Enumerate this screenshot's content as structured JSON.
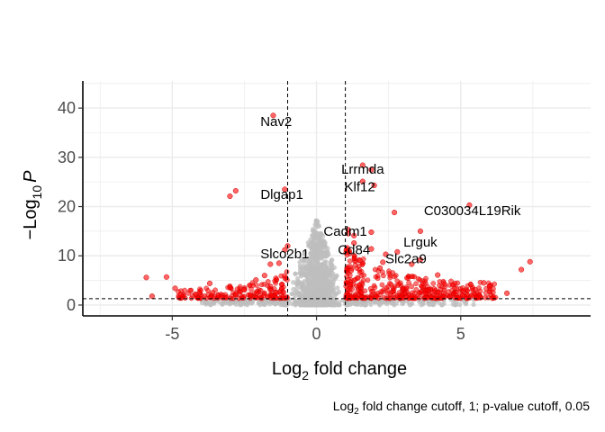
{
  "chart_data": {
    "type": "scatter",
    "title": "",
    "xlabel": {
      "base": "Log",
      "sub": "2",
      "rest": " fold change"
    },
    "ylabel": {
      "minus": "−",
      "base": "Log",
      "sub": "10",
      "var": "P"
    },
    "caption": {
      "base": "Log",
      "sub": "2",
      "rest": " fold change cutoff, 1; p-value cutoff, 0.05"
    },
    "xlim": [
      -8.1,
      9.5
    ],
    "ylim": [
      -2.2,
      45.5
    ],
    "xticks": [
      -5,
      0,
      5
    ],
    "xtick_labels": [
      "-5",
      "0",
      "5"
    ],
    "yticks": [
      0,
      10,
      20,
      30,
      40
    ],
    "ytick_labels": [
      "0",
      "10",
      "20",
      "30",
      "40"
    ],
    "grid": true,
    "fc_cutoff": 1,
    "p_cutoff_line": 1.3,
    "colors": {
      "significant": "#ff0000",
      "ns": "#bebebe",
      "grid": "#ebebeb",
      "cutoff_line": "#000000"
    },
    "significant_points": [
      [
        -1.5,
        38.5
      ],
      [
        -1.1,
        23.5
      ],
      [
        -2.8,
        23.2
      ],
      [
        -3.0,
        22.1
      ],
      [
        -1.3,
        8.5
      ],
      [
        -1.0,
        12.0
      ],
      [
        -1.1,
        11.2
      ],
      [
        -1.6,
        8.3
      ],
      [
        -5.9,
        5.6
      ],
      [
        -5.2,
        5.7
      ],
      [
        -5.7,
        1.8
      ],
      [
        -4.9,
        3.4
      ],
      [
        -4.7,
        2.1
      ],
      [
        -3.7,
        4.4
      ],
      [
        -3.6,
        2.5
      ],
      [
        -3.0,
        3.6
      ],
      [
        -3.4,
        2.0
      ],
      [
        -2.5,
        3.1
      ],
      [
        -2.3,
        2.1
      ],
      [
        -2.1,
        5.1
      ],
      [
        -1.8,
        6.0
      ],
      [
        -1.6,
        3.8
      ],
      [
        -1.4,
        2.5
      ],
      [
        -1.2,
        4.2
      ],
      [
        -4.2,
        2.2
      ],
      [
        -2.8,
        2.3
      ],
      [
        1.6,
        28.4
      ],
      [
        1.9,
        27.5
      ],
      [
        1.6,
        25.1
      ],
      [
        2.0,
        24.3
      ],
      [
        5.3,
        20.3
      ],
      [
        2.7,
        18.8
      ],
      [
        1.1,
        15.3
      ],
      [
        1.1,
        14.5
      ],
      [
        1.3,
        14.1
      ],
      [
        1.9,
        14.8
      ],
      [
        3.6,
        15.0
      ],
      [
        1.9,
        11.4
      ],
      [
        2.8,
        10.8
      ],
      [
        2.4,
        10.3
      ],
      [
        1.5,
        9.1
      ],
      [
        2.3,
        8.7
      ],
      [
        3.3,
        8.3
      ],
      [
        3.6,
        9.2
      ],
      [
        7.4,
        8.8
      ],
      [
        7.1,
        7.2
      ],
      [
        1.3,
        12.6
      ],
      [
        2.2,
        7.5
      ],
      [
        4.2,
        6.1
      ],
      [
        1.2,
        7.0
      ],
      [
        5.8,
        4.5
      ],
      [
        6.0,
        3.8
      ],
      [
        5.5,
        3.1
      ],
      [
        6.6,
        2.4
      ]
    ],
    "gene_labels": [
      {
        "text": "Nav2",
        "x": -1.4,
        "y": 37.3
      },
      {
        "text": "Lrrmda",
        "x": 1.6,
        "y": 27.6
      },
      {
        "text": "Klf12",
        "x": 1.5,
        "y": 24.0
      },
      {
        "text": "Dlgap1",
        "x": -1.2,
        "y": 22.5
      },
      {
        "text": "C030034L19Rik",
        "x": 5.4,
        "y": 19.2
      },
      {
        "text": "Cadm1",
        "x": 1.0,
        "y": 15.0
      },
      {
        "text": "Lrguk",
        "x": 3.6,
        "y": 12.8
      },
      {
        "text": "Cd84",
        "x": 1.3,
        "y": 11.2
      },
      {
        "text": "Slco2b1",
        "x": -1.1,
        "y": 10.4
      },
      {
        "text": "Slc2a9",
        "x": 3.1,
        "y": 9.4
      }
    ]
  }
}
